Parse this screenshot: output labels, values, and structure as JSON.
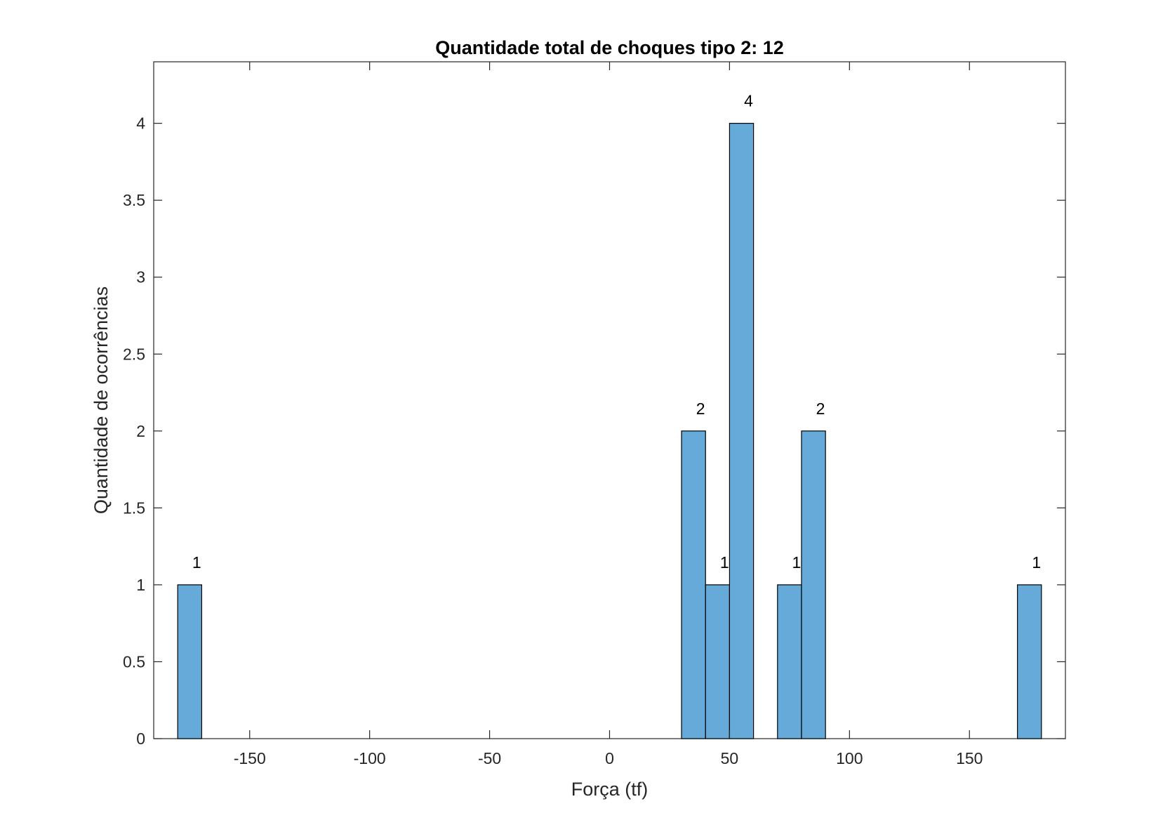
{
  "chart_data": {
    "type": "bar",
    "title": "Quantidade total de choques tipo 2: 12",
    "xlabel": "Força (tf)",
    "ylabel": "Quantidade de ocorrências",
    "xlim": [
      -190,
      190
    ],
    "ylim": [
      0,
      4.4
    ],
    "xticks": [
      -150,
      -100,
      -50,
      0,
      50,
      100,
      150
    ],
    "yticks": [
      0,
      0.5,
      1,
      1.5,
      2,
      2.5,
      3,
      3.5,
      4
    ],
    "grid": false,
    "bar_color": "#66aad9",
    "bins": [
      {
        "x0": -180,
        "x1": -170,
        "value": 1,
        "label": "1"
      },
      {
        "x0": 30,
        "x1": 40,
        "value": 2,
        "label": "2"
      },
      {
        "x0": 40,
        "x1": 50,
        "value": 1,
        "label": "1"
      },
      {
        "x0": 50,
        "x1": 60,
        "value": 4,
        "label": "4"
      },
      {
        "x0": 70,
        "x1": 80,
        "value": 1,
        "label": "1"
      },
      {
        "x0": 80,
        "x1": 90,
        "value": 2,
        "label": "2"
      },
      {
        "x0": 170,
        "x1": 180,
        "value": 1,
        "label": "1"
      }
    ]
  }
}
